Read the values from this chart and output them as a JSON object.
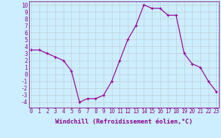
{
  "x": [
    0,
    1,
    2,
    3,
    4,
    5,
    6,
    7,
    8,
    9,
    10,
    11,
    12,
    13,
    14,
    15,
    16,
    17,
    18,
    19,
    20,
    21,
    22,
    23
  ],
  "y": [
    3.5,
    3.5,
    3.0,
    2.5,
    2.0,
    0.5,
    -4.0,
    -3.5,
    -3.5,
    -3.0,
    -1.0,
    2.0,
    5.0,
    7.0,
    10.0,
    9.5,
    9.5,
    8.5,
    8.5,
    3.0,
    1.5,
    1.0,
    -1.0,
    -2.5
  ],
  "line_color": "#990099",
  "marker": "+",
  "bg_color": "#cceeff",
  "grid_color": "#bbbbbb",
  "xlabel": "Windchill (Refroidissement éolien,°C)",
  "ytick_vals": [
    -4,
    -3,
    -2,
    -1,
    0,
    1,
    2,
    3,
    4,
    5,
    6,
    7,
    8,
    9,
    10
  ],
  "ylabel_ticks": [
    "-4",
    "-3",
    "-2",
    "-1",
    "0",
    "1",
    "2",
    "3",
    "4",
    "5",
    "6",
    "7",
    "8",
    "9",
    "10"
  ],
  "ylim": [
    -4.8,
    10.5
  ],
  "xlim": [
    -0.3,
    23.3
  ],
  "xtick_vals": [
    0,
    1,
    2,
    3,
    4,
    5,
    6,
    7,
    8,
    9,
    10,
    11,
    12,
    13,
    14,
    15,
    16,
    17,
    18,
    19,
    20,
    21,
    22,
    23
  ],
  "font_color": "#880088",
  "tick_fontsize": 5.5,
  "label_fontsize": 6.5,
  "marker_size": 3,
  "linewidth": 0.9
}
